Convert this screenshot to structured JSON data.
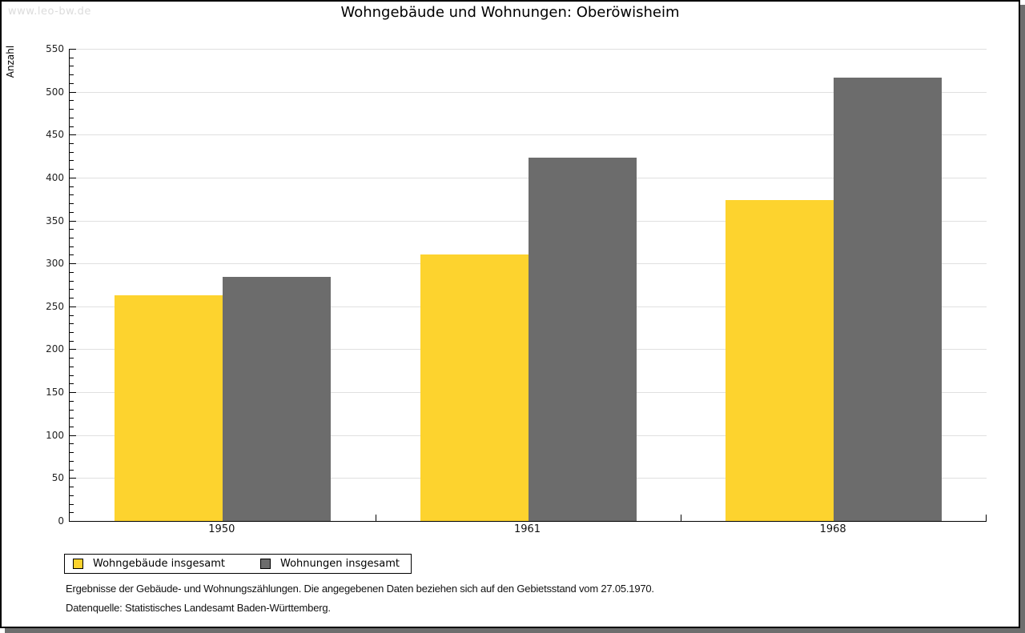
{
  "watermark": "www.leo-bw.de",
  "title": "Wohngebäude und Wohnungen: Oberöwisheim",
  "chart_data": {
    "type": "bar",
    "title": "Wohngebäude und Wohnungen: Oberöwisheim",
    "categories": [
      "1950",
      "1961",
      "1968"
    ],
    "series": [
      {
        "name": "Wohngebäude insgesamt",
        "color": "#FDD32E",
        "values": [
          263,
          310,
          374
        ]
      },
      {
        "name": "Wohnungen insgesamt",
        "color": "#6C6C6C",
        "values": [
          284,
          423,
          516
        ]
      }
    ],
    "xlabel": "",
    "ylabel": "Anzahl",
    "ylim": [
      0,
      550
    ],
    "ytick_step": 50,
    "yminor_step": 10,
    "grid": true,
    "gridline_color": "#E0E0E0",
    "legend_position": "bottom-left"
  },
  "footnotes": [
    "Ergebnisse der Gebäude- und Wohnungszählungen. Die angegebenen Daten beziehen sich auf den Gebietsstand vom 27.05.1970.",
    "Datenquelle: Statistisches Landesamt Baden-Württemberg."
  ]
}
